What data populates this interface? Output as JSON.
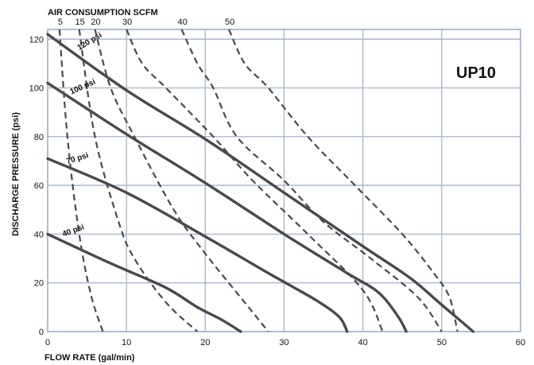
{
  "chart_data": {
    "type": "line",
    "title": "AIR CONSUMPTION SCFM",
    "model": "UP10",
    "xlabel": "FLOW RATE (gal/min)",
    "ylabel": "DISCHARGE PRESSURE (psi)",
    "xlim": [
      0,
      60
    ],
    "ylim": [
      0,
      120
    ],
    "x_ticks": [
      0,
      10,
      20,
      30,
      40,
      50,
      60
    ],
    "y_ticks": [
      0,
      20,
      40,
      60,
      80,
      100,
      120
    ],
    "grid": true,
    "pressure_curves": [
      {
        "label": "120 psi",
        "points": [
          [
            0,
            122
          ],
          [
            10,
            99
          ],
          [
            20,
            79
          ],
          [
            30,
            57
          ],
          [
            40,
            35
          ],
          [
            46,
            22
          ],
          [
            50,
            11
          ],
          [
            54,
            0
          ]
        ]
      },
      {
        "label": "100 psi",
        "points": [
          [
            0,
            102
          ],
          [
            10,
            81
          ],
          [
            20,
            61
          ],
          [
            30,
            40
          ],
          [
            38,
            24
          ],
          [
            42,
            16
          ],
          [
            44.5,
            6
          ],
          [
            45.5,
            0
          ]
        ]
      },
      {
        "label": "70 psi",
        "points": [
          [
            0,
            71
          ],
          [
            10,
            57
          ],
          [
            20,
            39
          ],
          [
            28,
            24
          ],
          [
            34,
            13
          ],
          [
            37,
            6
          ],
          [
            38,
            0
          ]
        ]
      },
      {
        "label": "40 psi",
        "points": [
          [
            0,
            40
          ],
          [
            8,
            28
          ],
          [
            15,
            18
          ],
          [
            19,
            10
          ],
          [
            22,
            5
          ],
          [
            24.5,
            0
          ]
        ]
      }
    ],
    "air_consumption_labels": [
      "5",
      "15",
      "20",
      "30",
      "40",
      "50"
    ],
    "air_consumption_curves": [
      {
        "scfm": 5,
        "points": [
          [
            1.5,
            124
          ],
          [
            2.5,
            80
          ],
          [
            4,
            40
          ],
          [
            5.5,
            15
          ],
          [
            7,
            0
          ]
        ]
      },
      {
        "scfm": 15,
        "points": [
          [
            4,
            124
          ],
          [
            6,
            80
          ],
          [
            9,
            45
          ],
          [
            11,
            30
          ],
          [
            15,
            12
          ],
          [
            19,
            0
          ]
        ]
      },
      {
        "scfm": 20,
        "points": [
          [
            6,
            124
          ],
          [
            8,
            100
          ],
          [
            11,
            80
          ],
          [
            16,
            50
          ],
          [
            20,
            32
          ],
          [
            25,
            12
          ],
          [
            28,
            0
          ]
        ]
      },
      {
        "scfm": 30,
        "points": [
          [
            10,
            124
          ],
          [
            12,
            110
          ],
          [
            15,
            100
          ],
          [
            21,
            80
          ],
          [
            26,
            62
          ],
          [
            33,
            40
          ],
          [
            40,
            17
          ],
          [
            42.5,
            0
          ]
        ]
      },
      {
        "scfm": 40,
        "points": [
          [
            17,
            124
          ],
          [
            19,
            110
          ],
          [
            21,
            100
          ],
          [
            24,
            80
          ],
          [
            30,
            62
          ],
          [
            35,
            45
          ],
          [
            41,
            30
          ],
          [
            47,
            14
          ],
          [
            50,
            0
          ]
        ]
      },
      {
        "scfm": 50,
        "points": [
          [
            23,
            124
          ],
          [
            25,
            110
          ],
          [
            28,
            100
          ],
          [
            33,
            80
          ],
          [
            39,
            60
          ],
          [
            45,
            40
          ],
          [
            49,
            24
          ],
          [
            51,
            14
          ],
          [
            52,
            0
          ]
        ]
      }
    ]
  }
}
